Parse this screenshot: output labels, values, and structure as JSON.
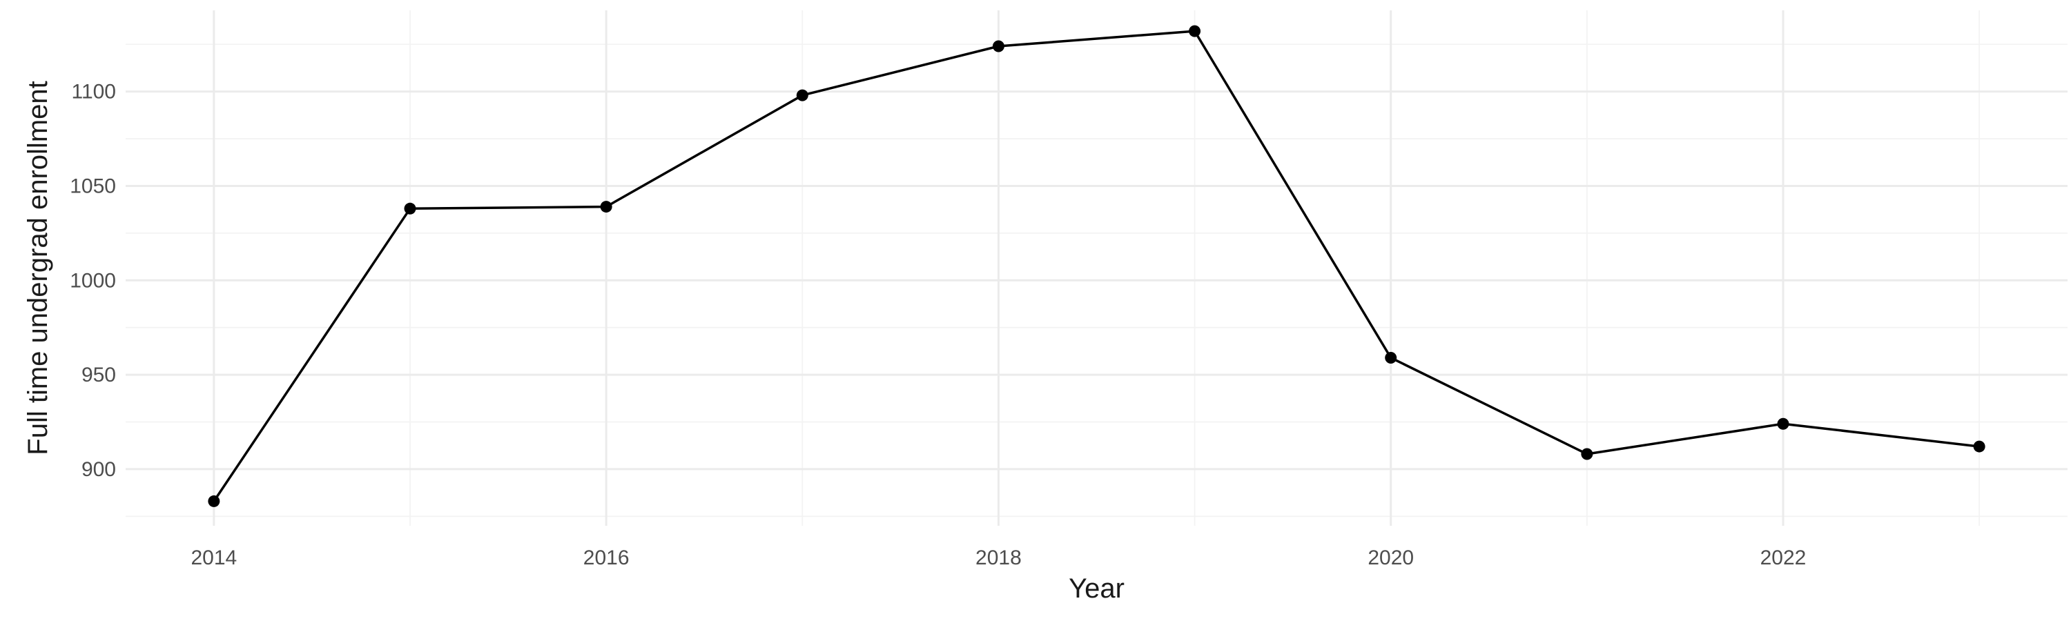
{
  "chart_data": {
    "type": "line",
    "title": "",
    "xlabel": "Year",
    "ylabel": "Full time undergrad enrollment",
    "x": [
      2014,
      2015,
      2016,
      2017,
      2018,
      2019,
      2020,
      2021,
      2022,
      2023
    ],
    "series": [
      {
        "values": [
          883,
          1038,
          1039,
          1098,
          1124,
          1132,
          959,
          908,
          924,
          912
        ]
      }
    ],
    "x_ticks": [
      2014,
      2016,
      2018,
      2020,
      2022
    ],
    "y_ticks": [
      900,
      950,
      1000,
      1050,
      1100
    ],
    "xlim": [
      2013.55,
      2023.45
    ],
    "ylim": [
      870,
      1143
    ],
    "grid": true,
    "legend": "none",
    "colors": {
      "line": "#000000",
      "point": "#000000",
      "grid": "#ebebeb",
      "background": "#ffffff"
    }
  }
}
